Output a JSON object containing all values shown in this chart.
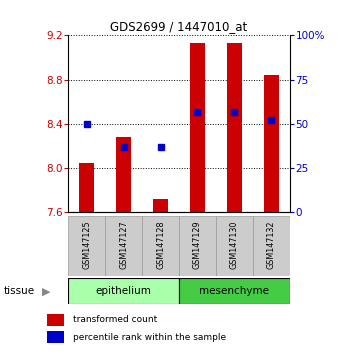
{
  "title": "GDS2699 / 1447010_at",
  "samples": [
    "GSM147125",
    "GSM147127",
    "GSM147128",
    "GSM147129",
    "GSM147130",
    "GSM147132"
  ],
  "red_values": [
    8.05,
    8.28,
    7.72,
    9.13,
    9.13,
    8.84
  ],
  "blue_values": [
    50,
    37,
    37,
    57,
    57,
    52
  ],
  "y_min": 7.6,
  "y_max": 9.2,
  "y_ticks": [
    7.6,
    8.0,
    8.4,
    8.8,
    9.2
  ],
  "y2_ticks": [
    0,
    25,
    50,
    75,
    100
  ],
  "bar_bottom": 7.6,
  "bar_color": "#CC0000",
  "dot_color": "#0000CC",
  "bar_width": 0.4,
  "left_label_color": "#CC0000",
  "right_label_color": "#0000CC",
  "legend_red_label": "transformed count",
  "legend_blue_label": "percentile rank within the sample",
  "epithelium_color": "#AAFFAA",
  "mesenchyme_color": "#44CC44",
  "sample_box_color": "#CCCCCC"
}
